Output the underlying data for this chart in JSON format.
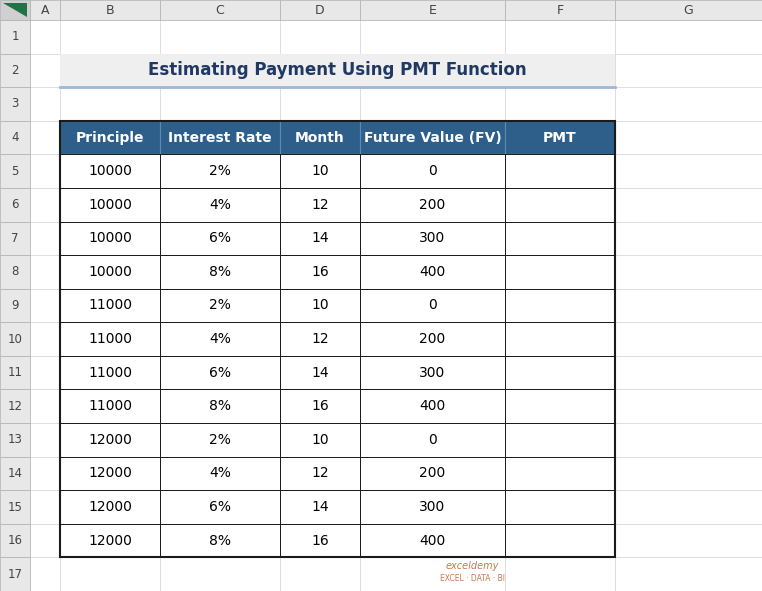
{
  "title": "Estimating Payment Using PMT Function",
  "title_fontsize": 12,
  "title_bg_color": "#efefef",
  "title_border_color": "#9db8d9",
  "header_bg_color": "#2e5f8a",
  "header_text_color": "#ffffff",
  "header_fontsize": 10,
  "cell_fontsize": 10,
  "cell_text_color": "#000000",
  "cell_bg_color": "#ffffff",
  "col_labels": [
    "Principle",
    "Interest Rate",
    "Month",
    "Future Value (FV)",
    "PMT"
  ],
  "rows": [
    [
      "10000",
      "2%",
      "10",
      "0",
      ""
    ],
    [
      "10000",
      "4%",
      "12",
      "200",
      ""
    ],
    [
      "10000",
      "6%",
      "14",
      "300",
      ""
    ],
    [
      "10000",
      "8%",
      "16",
      "400",
      ""
    ],
    [
      "11000",
      "2%",
      "10",
      "0",
      ""
    ],
    [
      "11000",
      "4%",
      "12",
      "200",
      ""
    ],
    [
      "11000",
      "6%",
      "14",
      "300",
      ""
    ],
    [
      "11000",
      "8%",
      "16",
      "400",
      ""
    ],
    [
      "12000",
      "2%",
      "10",
      "0",
      ""
    ],
    [
      "12000",
      "4%",
      "12",
      "200",
      ""
    ],
    [
      "12000",
      "6%",
      "14",
      "300",
      ""
    ],
    [
      "12000",
      "8%",
      "16",
      "400",
      ""
    ]
  ],
  "excel_bg": "#d4d4d4",
  "excel_header_gray": "#e8e8e8",
  "excel_white": "#ffffff",
  "excel_border": "#b0b0b0",
  "col_letter_labels": [
    "A",
    "B",
    "C",
    "D",
    "E",
    "F",
    "G"
  ],
  "watermark_line1": "exceldemy",
  "watermark_line2": "EXCEL · DATA · BI",
  "watermark_color": "#c0602a",
  "corner_triangle_color": "#217346",
  "total_rows": 17,
  "fig_width": 7.62,
  "fig_height": 5.91,
  "dpi": 100
}
